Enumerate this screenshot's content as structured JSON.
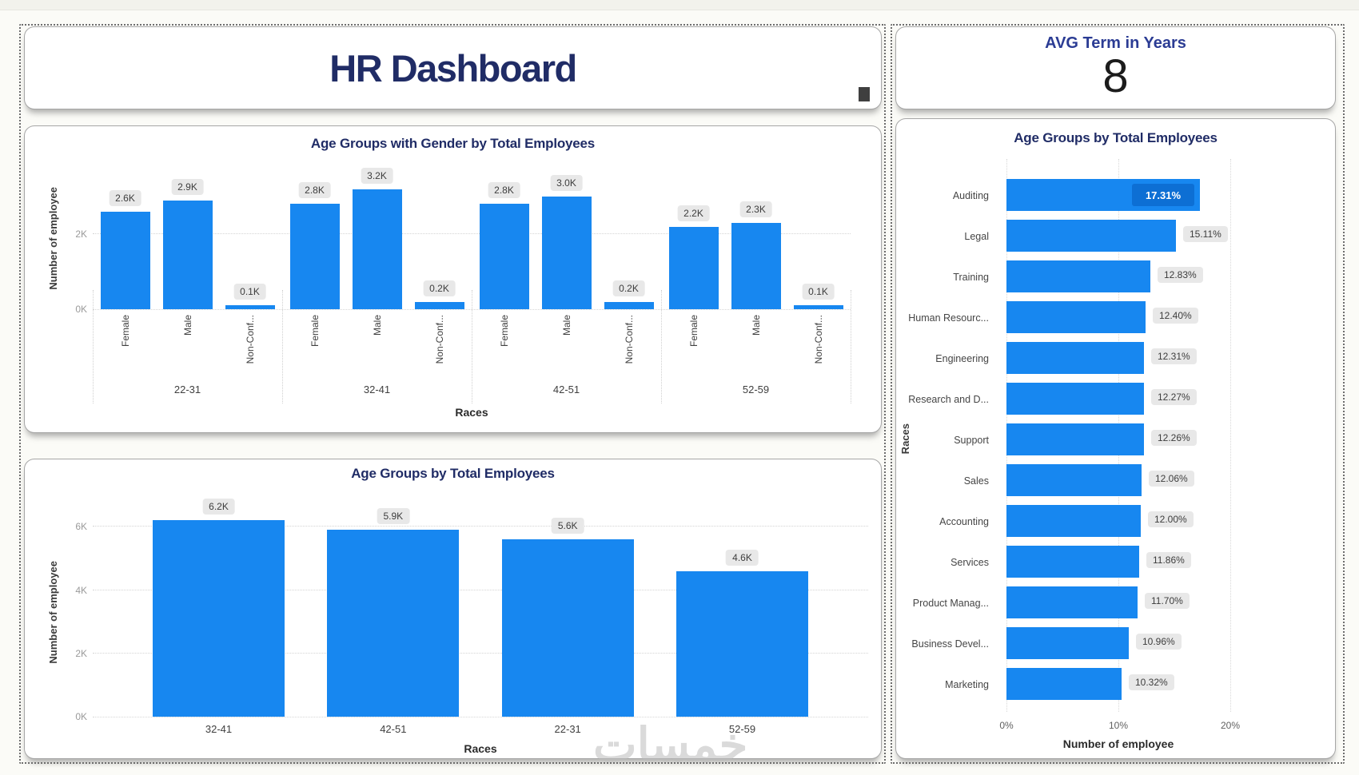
{
  "page": {
    "watermark_text": "خمسات"
  },
  "header": {
    "title": "HR Dashboard"
  },
  "kpi": {
    "label": "AVG Term in Years",
    "value": "8"
  },
  "colors": {
    "bar_blue": "#1787F0",
    "inside_chip_blue": "#0D6FD4",
    "title_navy": "#202C66",
    "kpi_label_blue": "#2B3C94",
    "badge_bg": "#E8E8E8",
    "badge_text": "#3D3D3D"
  },
  "chart_data": [
    {
      "type": "bar",
      "title": "Age Groups with Gender by Total Employees",
      "xlabel": "Races",
      "ylabel": "Number of employee",
      "yticks": [
        "0K",
        "2K"
      ],
      "ylim_k": [
        0,
        3.5
      ],
      "grid": true,
      "groups": [
        "22-31",
        "32-41",
        "42-51",
        "52-59"
      ],
      "subcategories": [
        "Female",
        "Male",
        "Non-Conf..."
      ],
      "values_k": [
        [
          2.6,
          2.9,
          0.1
        ],
        [
          2.8,
          3.2,
          0.2
        ],
        [
          2.8,
          3.0,
          0.2
        ],
        [
          2.2,
          2.3,
          0.1
        ]
      ],
      "labels": [
        [
          "2.6K",
          "2.9K",
          "0.1K"
        ],
        [
          "2.8K",
          "3.2K",
          "0.2K"
        ],
        [
          "2.8K",
          "3.0K",
          "0.2K"
        ],
        [
          "2.2K",
          "2.3K",
          "0.1K"
        ]
      ]
    },
    {
      "type": "bar",
      "title": "Age Groups by Total Employees",
      "xlabel": "Races",
      "ylabel": "Number of employee",
      "yticks": [
        "0K",
        "2K",
        "4K",
        "6K"
      ],
      "ylim_k": [
        0,
        7
      ],
      "grid": true,
      "categories": [
        "32-41",
        "42-51",
        "22-31",
        "52-59"
      ],
      "values_k": [
        6.2,
        5.9,
        5.6,
        4.6
      ],
      "labels": [
        "6.2K",
        "5.9K",
        "5.6K",
        "4.6K"
      ]
    },
    {
      "type": "bar-horizontal",
      "title": "Age Groups by Total Employees",
      "xlabel": "Number of employee",
      "ylabel": "Races",
      "xticks": [
        "0%",
        "10%",
        "20%"
      ],
      "xlim_pct": [
        0,
        20
      ],
      "grid": true,
      "inside_label_index": 0,
      "categories": [
        "Auditing",
        "Legal",
        "Training",
        "Human Resourc...",
        "Engineering",
        "Research and D...",
        "Support",
        "Sales",
        "Accounting",
        "Services",
        "Product Manag...",
        "Business Devel...",
        "Marketing"
      ],
      "values_pct": [
        17.31,
        15.11,
        12.83,
        12.4,
        12.31,
        12.27,
        12.26,
        12.06,
        12.0,
        11.86,
        11.7,
        10.96,
        10.32
      ],
      "labels": [
        "17.31%",
        "15.11%",
        "12.83%",
        "12.40%",
        "12.31%",
        "12.27%",
        "12.26%",
        "12.06%",
        "12.00%",
        "11.86%",
        "11.70%",
        "10.96%",
        "10.32%"
      ]
    }
  ]
}
